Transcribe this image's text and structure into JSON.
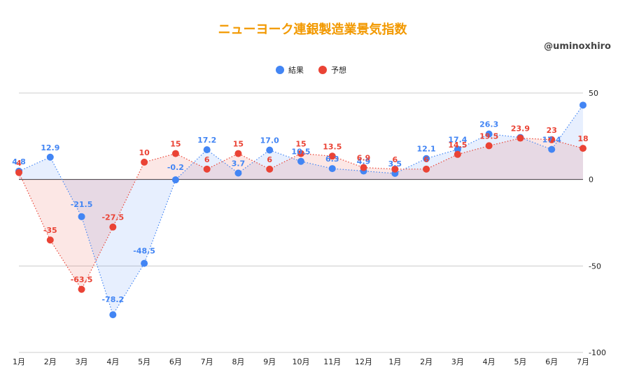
{
  "title": "ニューヨーク連銀製造業景気指数",
  "watermark": "@uminoxhiro",
  "chart_data": {
    "type": "line",
    "categories": [
      "1月",
      "2月",
      "3月",
      "4月",
      "5月",
      "6月",
      "7月",
      "8月",
      "9月",
      "10月",
      "11月",
      "12月",
      "1月",
      "2月",
      "3月",
      "4月",
      "5月",
      "6月",
      "7月"
    ],
    "ylim": [
      -100,
      50
    ],
    "yticks": [
      50,
      0,
      -50,
      -100
    ],
    "grid": true,
    "legend_position": "top",
    "series": [
      {
        "name": "結果",
        "color": "#4285f4",
        "values": [
          4.8,
          12.9,
          -21.5,
          -78.2,
          -48.5,
          -0.2,
          17.2,
          3.7,
          17.0,
          10.5,
          6.3,
          4.9,
          3.5,
          12.1,
          17.4,
          26.3,
          24.3,
          17.4,
          43.0
        ],
        "labels": [
          "4.8",
          "12.9",
          "-21.5",
          "-78.2",
          "-48.5",
          "-0.2",
          "17.2",
          "3.7",
          "17.0",
          "10.5",
          "6.3",
          "4.9",
          "3.5",
          "12.1",
          "17.4",
          "26.3",
          "",
          "17.4",
          ""
        ]
      },
      {
        "name": "予想",
        "color": "#ea4335",
        "values": [
          4,
          -35,
          -63.5,
          -27.5,
          10,
          15,
          6,
          15,
          6,
          15,
          13.5,
          6.9,
          6,
          6,
          14.5,
          19.5,
          23.9,
          23,
          18
        ],
        "labels": [
          "4",
          "-35",
          "-63.5",
          "-27.5",
          "10",
          "15",
          "6",
          "15",
          "6",
          "15",
          "13.5",
          "6.9",
          "6",
          "6",
          "14.5",
          "19.5",
          "23.9",
          "23",
          "18"
        ]
      }
    ]
  }
}
